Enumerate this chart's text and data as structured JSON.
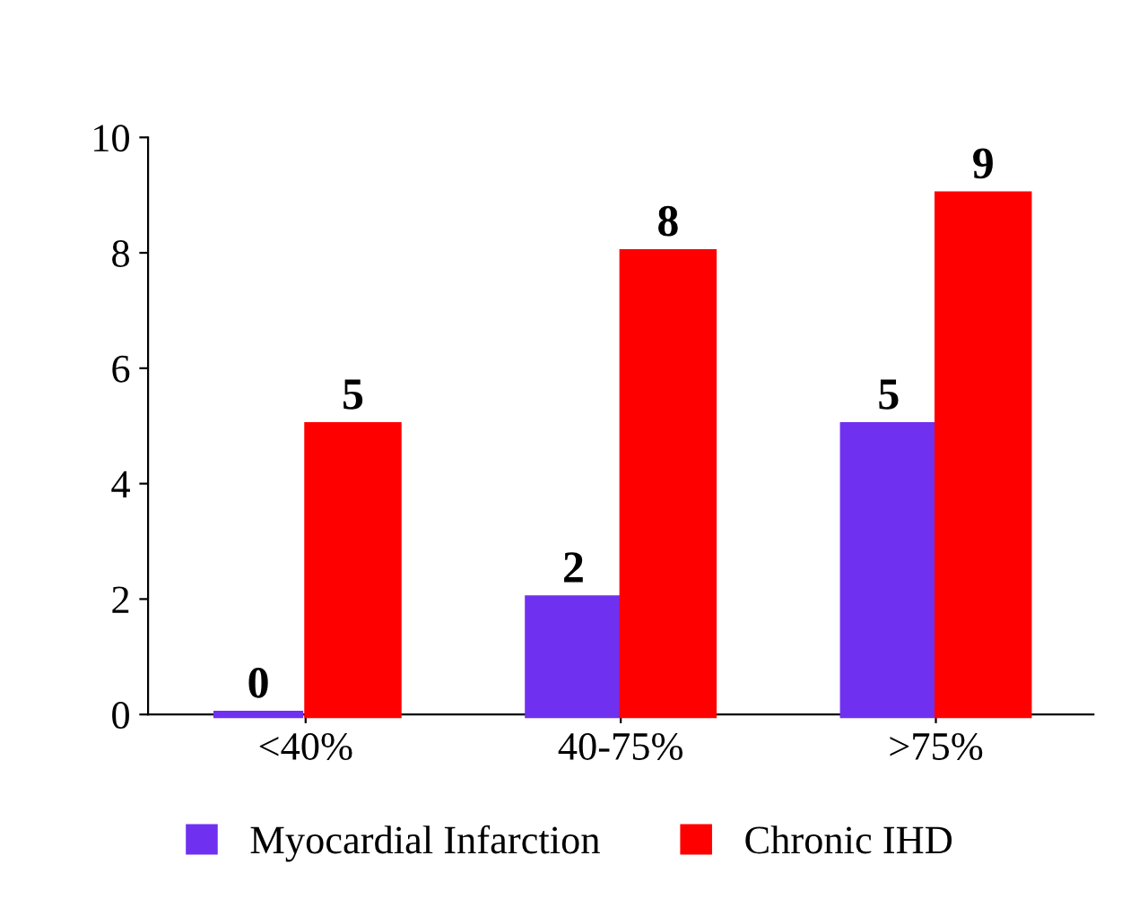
{
  "chart_data": {
    "type": "bar",
    "categories": [
      "<40%",
      "40-75%",
      ">75%"
    ],
    "series": [
      {
        "name": "Myocardial Infarction",
        "color": "#7030f0",
        "values": [
          0,
          2,
          5
        ]
      },
      {
        "name": "Chronic IHD",
        "color": "#ff0000",
        "values": [
          5,
          8,
          9
        ]
      }
    ],
    "ylim": [
      0,
      10
    ],
    "yticks": [
      0,
      2,
      4,
      6,
      8,
      10
    ],
    "data_labels": true,
    "legend": "bottom",
    "grid": false
  }
}
